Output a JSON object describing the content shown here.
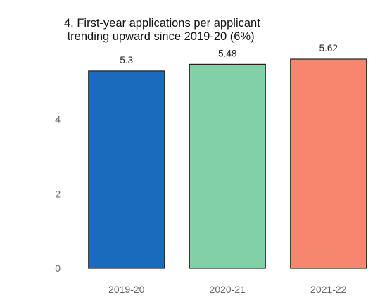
{
  "chart_data": {
    "type": "bar",
    "title": "4. First-year applications per applicant\n trending upward since 2019-20 (6%)",
    "title_lines": [
      "4. First-year applications per applicant",
      " trending upward since 2019-20 (6%)"
    ],
    "categories": [
      "2019-20",
      "2020-21",
      "2021-22"
    ],
    "values": [
      5.3,
      5.48,
      5.62
    ],
    "data_labels": [
      "5.3",
      "5.48",
      "5.62"
    ],
    "colors": [
      "#1a6bbd",
      "#82d0a5",
      "#f5876f"
    ],
    "xlabel": "",
    "ylabel": "",
    "yticks": [
      0,
      2,
      4
    ],
    "ylim": [
      0,
      5.62
    ],
    "grid": false,
    "legend": "none"
  }
}
